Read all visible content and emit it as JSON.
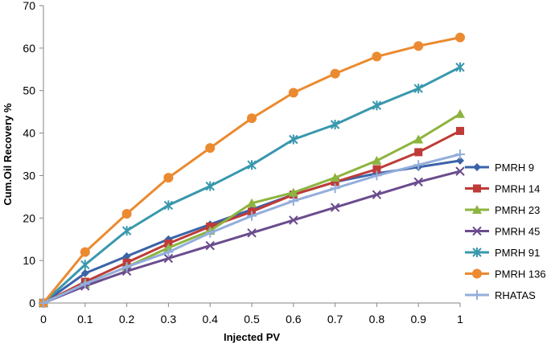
{
  "chart_data": {
    "type": "line",
    "title": "",
    "xlabel": "Injected PV",
    "ylabel": "Cum.Oil Recovery %",
    "x": [
      0,
      0.1,
      0.2,
      0.3,
      0.4,
      0.5,
      0.6,
      0.7,
      0.8,
      0.9,
      1
    ],
    "x_tick_labels": [
      "0",
      "0.1",
      "0.2",
      "0.3",
      "0.4",
      "0.5",
      "0.6",
      "0.7",
      "0.8",
      "0.9",
      "1"
    ],
    "y_ticks": [
      0,
      10,
      20,
      30,
      40,
      50,
      60,
      70
    ],
    "y_tick_labels": [
      "0",
      "10",
      "20",
      "30",
      "40",
      "50",
      "60",
      "70"
    ],
    "xlim": [
      0,
      1
    ],
    "ylim": [
      0,
      70
    ],
    "grid": false,
    "legend_position": "right",
    "series": [
      {
        "name": "PMRH 9",
        "color": "#3b63a8",
        "marker": "diamond",
        "values": [
          0,
          7,
          11,
          15,
          18.5,
          22,
          25.5,
          28.5,
          30.5,
          32,
          33.5
        ]
      },
      {
        "name": "PMRH 14",
        "color": "#be3b37",
        "marker": "square",
        "values": [
          0,
          5,
          9.5,
          14,
          18,
          21.5,
          25.5,
          28.5,
          31.5,
          35.5,
          40.5
        ]
      },
      {
        "name": "PMRH 23",
        "color": "#8db43e",
        "marker": "triangle",
        "values": [
          0,
          4.5,
          8.5,
          13,
          17,
          23.5,
          26,
          29.5,
          33.5,
          38.5,
          44.5
        ]
      },
      {
        "name": "PMRH 45",
        "color": "#6b4c8e",
        "marker": "x",
        "values": [
          0,
          4,
          7.5,
          10.5,
          13.5,
          16.5,
          19.5,
          22.5,
          25.5,
          28.5,
          31
        ]
      },
      {
        "name": "PMRH 91",
        "color": "#3898ad",
        "marker": "star",
        "values": [
          0,
          9,
          17,
          23,
          27.5,
          32.5,
          38.5,
          42,
          46.5,
          50.5,
          55.5
        ]
      },
      {
        "name": "PMRH 136",
        "color": "#eb8a30",
        "marker": "circle",
        "values": [
          0,
          12,
          21,
          29.5,
          36.5,
          43.5,
          49.5,
          54,
          58,
          60.5,
          62.5
        ]
      },
      {
        "name": "RHATAS",
        "color": "#92aedb",
        "marker": "plus",
        "values": [
          0,
          4.5,
          8.5,
          12,
          16.5,
          20.5,
          24,
          27,
          30,
          32.5,
          35
        ]
      }
    ]
  }
}
